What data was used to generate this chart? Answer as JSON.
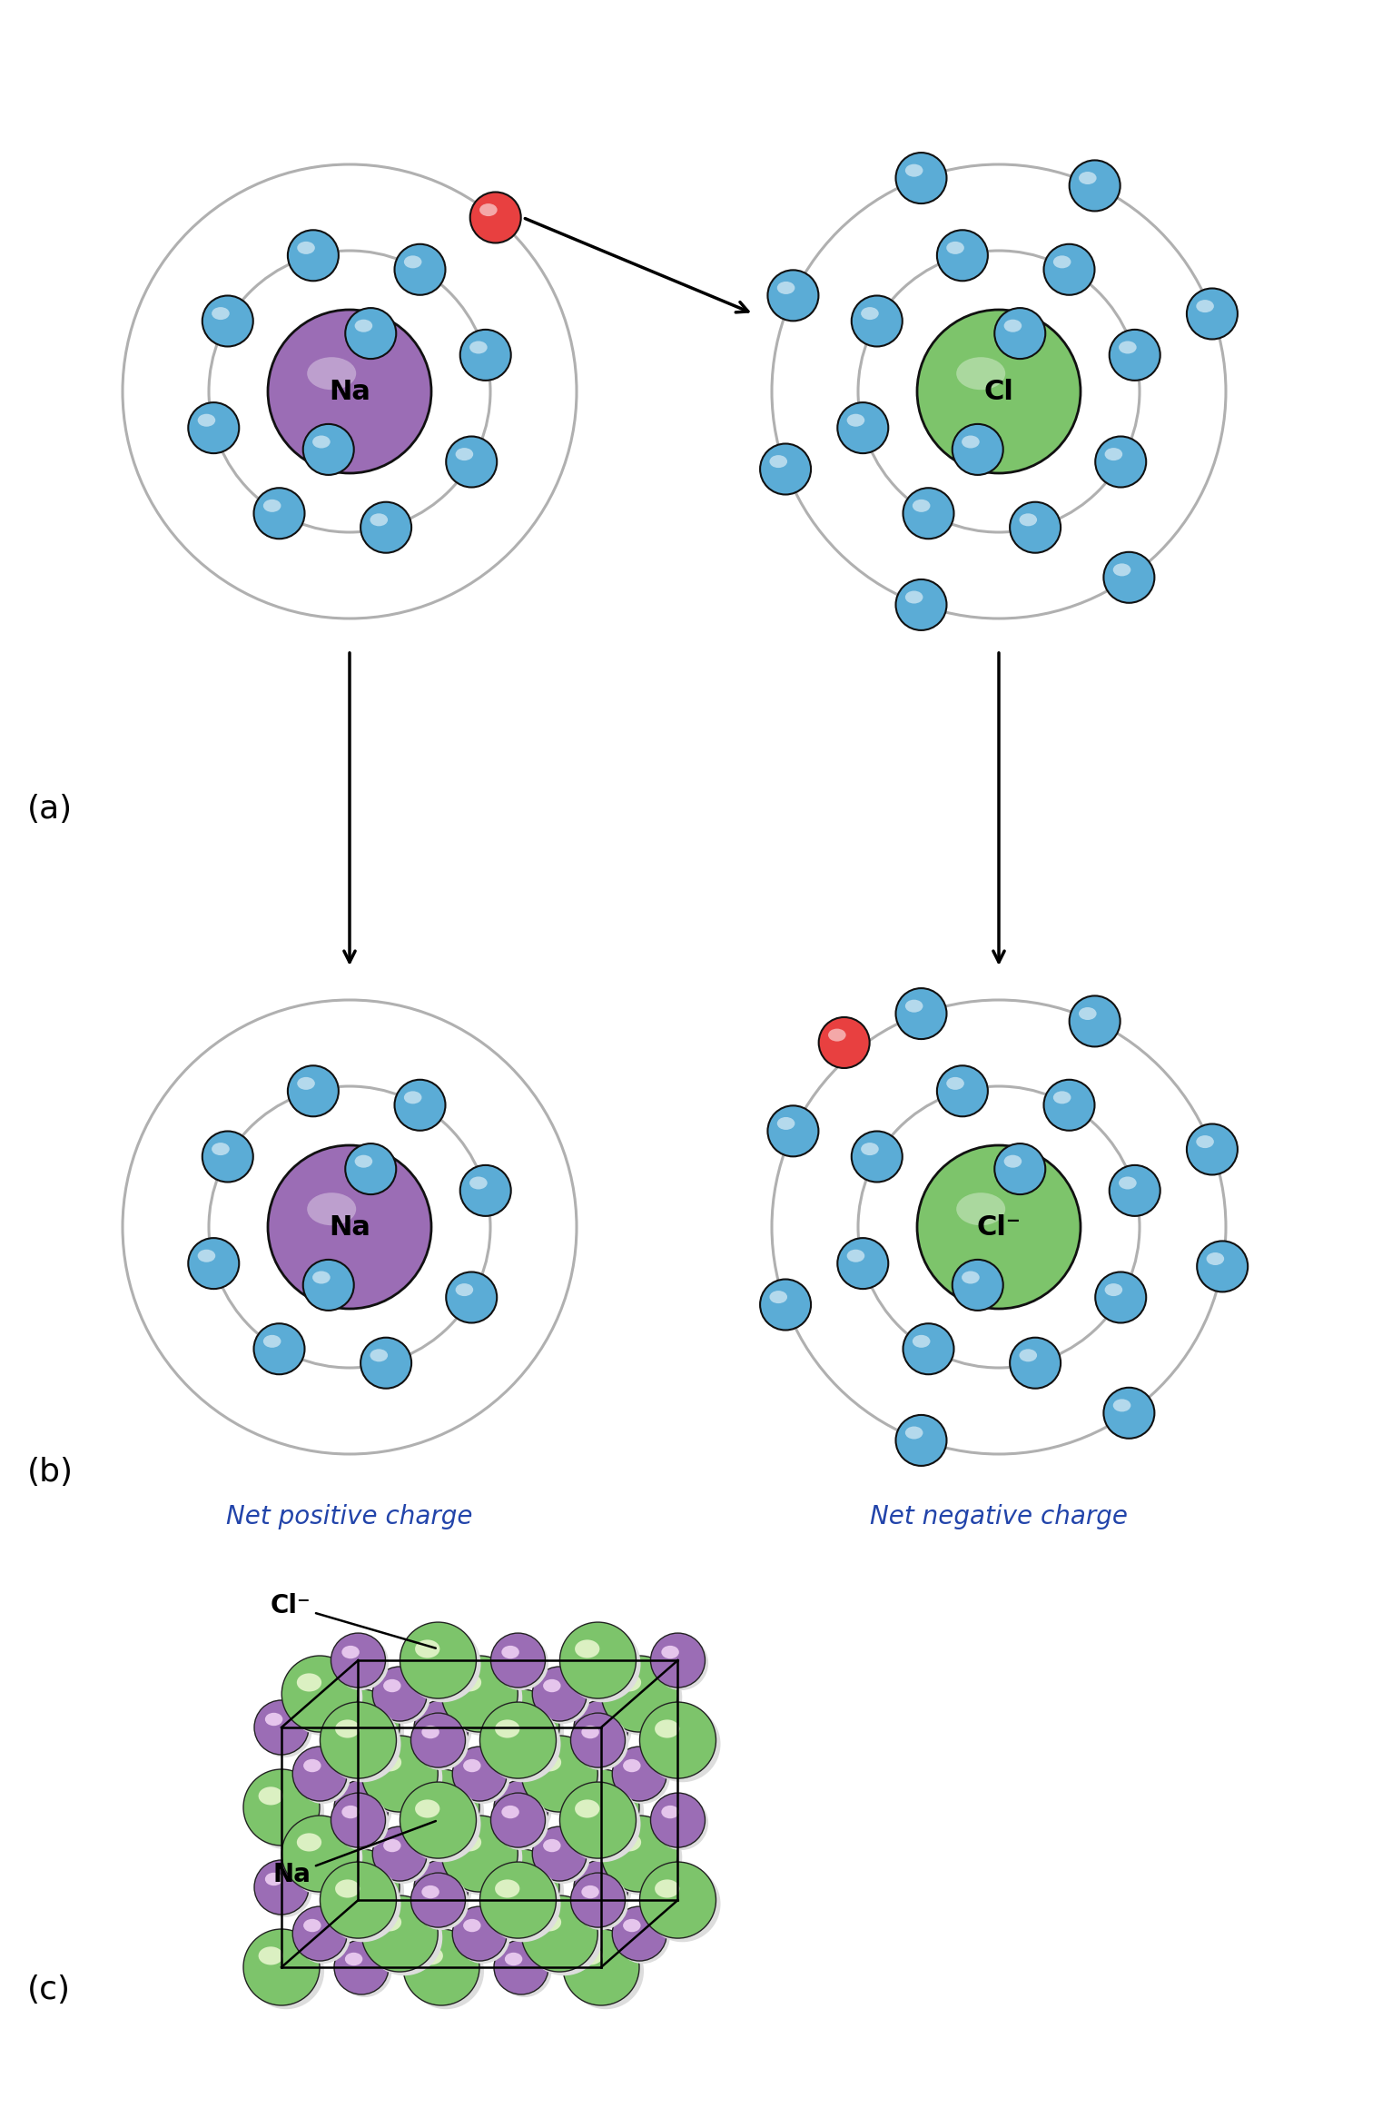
{
  "bg_color": "#ffffff",
  "electron_color": "#5BACD6",
  "electron_edge": "#000000",
  "na_color": "#9B6DB5",
  "cl_color": "#7DC46B",
  "red_color": "#E84040",
  "orbit_color": "#b0b0b0",
  "orbit_lw": 2.2,
  "net_pos_label": "Net positive charge",
  "net_neg_label": "Net negative charge",
  "na_label": "Na",
  "cl_label": "Cl",
  "cl_ion_label": "Cl⁻",
  "na_ion_label": "Na"
}
